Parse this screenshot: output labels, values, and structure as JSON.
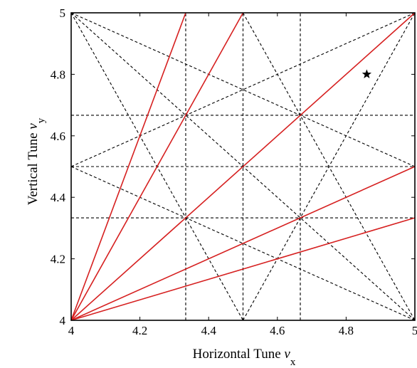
{
  "chart_data": {
    "type": "line",
    "title": "",
    "xlabel": {
      "text": "Horizontal Tune ",
      "symbol": "ν",
      "subscript": "x"
    },
    "ylabel": {
      "text": "Vertical Tune ",
      "symbol": "ν",
      "subscript": "y"
    },
    "xlim": [
      4,
      5
    ],
    "ylim": [
      4,
      5
    ],
    "x_ticks": [
      {
        "value": 4,
        "label": "4"
      },
      {
        "value": 4.2,
        "label": "4.2"
      },
      {
        "value": 4.4,
        "label": "4.4"
      },
      {
        "value": 4.6,
        "label": "4.6"
      },
      {
        "value": 4.8,
        "label": "4.8"
      },
      {
        "value": 5,
        "label": "5"
      }
    ],
    "y_ticks": [
      {
        "value": 4,
        "label": "4"
      },
      {
        "value": 4.2,
        "label": "4.2"
      },
      {
        "value": 4.4,
        "label": "4.4"
      },
      {
        "value": 4.6,
        "label": "4.6"
      },
      {
        "value": 4.8,
        "label": "4.8"
      },
      {
        "value": 5,
        "label": "5"
      }
    ],
    "grid": false,
    "series": [
      {
        "style": "solid",
        "color": "#d62020",
        "lines": [
          [
            [
              4,
              4
            ],
            [
              4.3333,
              5
            ]
          ],
          [
            [
              4,
              4
            ],
            [
              4.5,
              5
            ]
          ],
          [
            [
              4,
              4
            ],
            [
              5,
              5
            ]
          ],
          [
            [
              4,
              4
            ],
            [
              5,
              4.5
            ]
          ],
          [
            [
              4,
              4
            ],
            [
              5,
              4.3333
            ]
          ]
        ]
      },
      {
        "style": "dashed",
        "color": "#000000",
        "lines": [
          [
            [
              4.3333,
              4
            ],
            [
              4.3333,
              5
            ]
          ],
          [
            [
              4.5,
              4
            ],
            [
              4.5,
              5
            ]
          ],
          [
            [
              4.6667,
              4
            ],
            [
              4.6667,
              5
            ]
          ],
          [
            [
              4,
              4.3333
            ],
            [
              5,
              4.3333
            ]
          ],
          [
            [
              4,
              4.5
            ],
            [
              5,
              4.5
            ]
          ],
          [
            [
              4,
              4.6667
            ],
            [
              5,
              4.6667
            ]
          ],
          [
            [
              4,
              5
            ],
            [
              5,
              4
            ]
          ],
          [
            [
              4,
              4.5
            ],
            [
              5,
              5
            ]
          ],
          [
            [
              4,
              4.5
            ],
            [
              5,
              4
            ]
          ],
          [
            [
              4,
              5
            ],
            [
              5,
              4.5
            ]
          ],
          [
            [
              4,
              5
            ],
            [
              4.5,
              4
            ]
          ],
          [
            [
              4.5,
              4
            ],
            [
              5,
              5
            ]
          ],
          [
            [
              4.5,
              5
            ],
            [
              5,
              4
            ]
          ]
        ]
      }
    ],
    "markers": [
      {
        "x": 4.86,
        "y": 4.8,
        "shape": "star",
        "color": "#000000"
      }
    ]
  }
}
